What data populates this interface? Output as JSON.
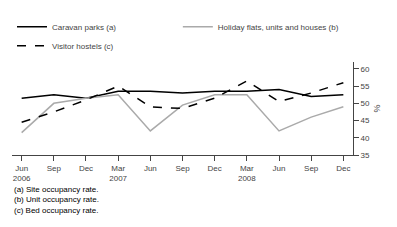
{
  "chart_data": {
    "type": "line",
    "categories": [
      "Jun\n2006",
      "Sep",
      "Dec",
      "Mar\n2007",
      "Jun",
      "Sep",
      "Dec",
      "Mar\n2008",
      "Jun",
      "Sep",
      "Dec"
    ],
    "series": [
      {
        "name": "Caravan parks (a)",
        "color": "#000000",
        "line_style": "solid",
        "values": [
          51.5,
          52.5,
          51.5,
          53.5,
          53.5,
          53.0,
          53.5,
          53.5,
          54.0,
          52.0,
          52.5
        ]
      },
      {
        "name": "Holiday flats, units and houses (b)",
        "color": "#aaaaaa",
        "line_style": "solid",
        "values": [
          41.5,
          50.0,
          51.5,
          52.5,
          42.0,
          49.5,
          52.5,
          52.5,
          42.0,
          46.0,
          49.0
        ]
      },
      {
        "name": "Visitor hostels (c)",
        "color": "#000000",
        "line_style": "dashed",
        "values": [
          44.5,
          47.5,
          51.0,
          55.0,
          49.0,
          48.5,
          51.5,
          56.5,
          50.5,
          53.0,
          56.0
        ]
      }
    ],
    "ylabel": "%",
    "ylim": [
      35,
      62
    ],
    "yticks": [
      35,
      40,
      45,
      50,
      55,
      60
    ],
    "grid": false,
    "legend": "top",
    "annotations": [
      "(a) Site occupancy rate.",
      "(b) Unit occupancy rate.",
      "(c) Bed occupancy rate."
    ]
  }
}
